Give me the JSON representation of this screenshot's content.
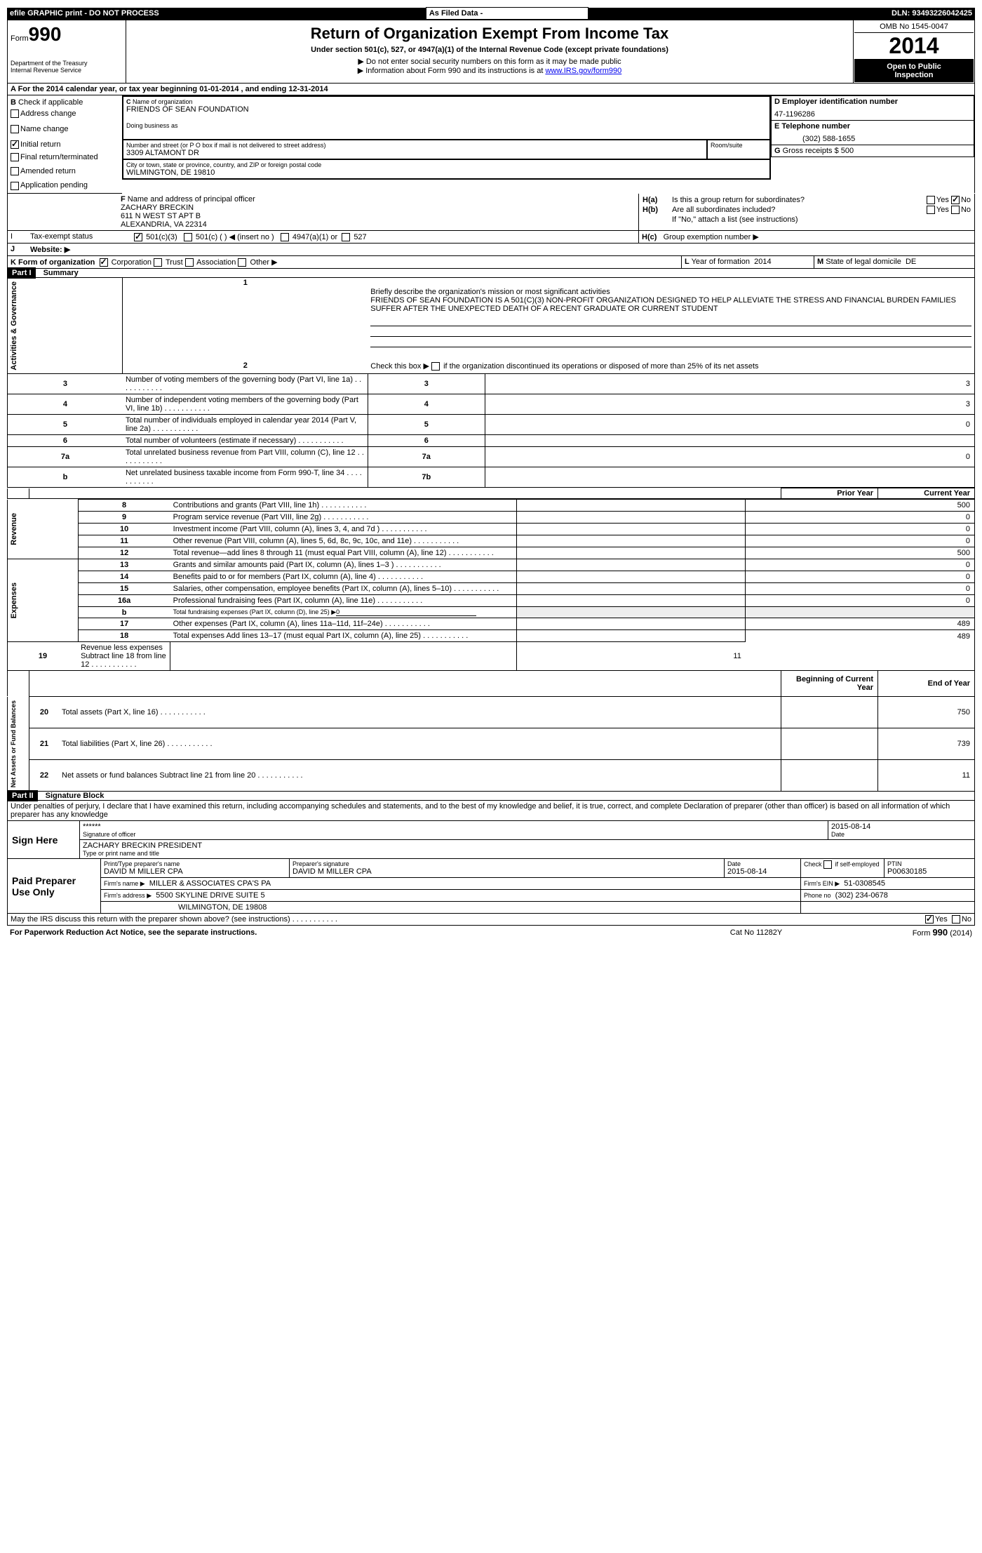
{
  "top_bar": {
    "left": "efile GRAPHIC print - DO NOT PROCESS",
    "mid": "As Filed Data - ",
    "right_label": "DLN:",
    "dln": "93493226042425"
  },
  "header": {
    "form_label": "Form",
    "form_number": "990",
    "dept1": "Department of the Treasury",
    "dept2": "Internal Revenue Service",
    "title": "Return of Organization Exempt From Income Tax",
    "subtitle": "Under section 501(c), 527, or 4947(a)(1) of the Internal Revenue Code (except private foundations)",
    "note1": "▶ Do not enter social security numbers on this form as it may be made public",
    "note2_pre": "▶ Information about Form 990 and its instructions is at ",
    "note2_link": "www.IRS.gov/form990",
    "omb": "OMB No  1545-0047",
    "year": "2014",
    "inspection1": "Open to Public",
    "inspection2": "Inspection"
  },
  "section_a": {
    "intro": "A  For the 2014 calendar year, or tax year beginning 01-01-2014    , and ending 12-31-2014",
    "b_label": "B",
    "b_text": "Check if applicable",
    "cb_address": "Address change",
    "cb_name": "Name change",
    "cb_initial": "Initial return",
    "cb_final": "Final return/terminated",
    "cb_amended": "Amended return",
    "cb_app": "Application pending",
    "c_label": "C",
    "c_name_label": "Name of organization",
    "c_name": "FRIENDS OF SEAN FOUNDATION",
    "dba_label": "Doing business as",
    "addr_label": "Number and street (or P O  box if mail is not delivered to street address)",
    "room_label": "Room/suite",
    "addr": "3309 ALTAMONT DR",
    "city_label": "City or town, state or province, country, and ZIP or foreign postal code",
    "city": "WILMINGTON, DE  19810",
    "d_label": "D  Employer identification number",
    "ein": "47-1196286",
    "e_label": "E  Telephone number",
    "phone": "(302) 588-1655",
    "g_label": "G",
    "g_text": "Gross receipts $",
    "g_val": "500",
    "f_label": "F",
    "f_text": "Name and address of principal officer",
    "f_name": "ZACHARY BRECKIN",
    "f_addr1": "611 N WEST ST APT B",
    "f_addr2": "ALEXANDRIA, VA  22314",
    "ha_label": "H(a)",
    "ha_text": "Is this a group return for subordinates?",
    "hb_label": "H(b)",
    "hb_text": "Are all subordinates included?",
    "h_note": "If \"No,\" attach a list  (see instructions)",
    "hc_label": "H(c)",
    "hc_text": "Group exemption number ▶",
    "yes": "Yes",
    "no": "No"
  },
  "status": {
    "i_label": "I",
    "i_text": "Tax-exempt status",
    "i_501c3": "501(c)(3)",
    "i_501c": "501(c) (   ) ◀ (insert no )",
    "i_4947": "4947(a)(1) or",
    "i_527": "527",
    "j_label": "J",
    "j_text": "Website: ▶",
    "k_text": "K Form of organization",
    "k_corp": "Corporation",
    "k_trust": "Trust",
    "k_assoc": "Association",
    "k_other": "Other ▶",
    "l_label": "L",
    "l_text": "Year of formation",
    "l_val": "2014",
    "m_label": "M",
    "m_text": "State of legal domicile",
    "m_val": "DE"
  },
  "part1": {
    "header": "Part I",
    "title": "Summary",
    "gov_label": "Activities & Governance",
    "rev_label": "Revenue",
    "exp_label": "Expenses",
    "net_label": "Net Assets or Fund Balances",
    "line1_label": "1",
    "line1_text": "Briefly describe the organization's mission or most significant activities",
    "line1_val": "FRIENDS OF SEAN FOUNDATION IS A 501(C)(3) NON-PROFIT ORGANIZATION DESIGNED TO HELP ALLEVIATE THE STRESS AND FINANCIAL BURDEN FAMILIES SUFFER AFTER THE UNEXPECTED DEATH OF A RECENT GRADUATE OR CURRENT STUDENT",
    "line2_label": "2",
    "line2_text": "Check this box ▶",
    "line2_post": "if the organization discontinued its operations or disposed of more than 25% of its net assets",
    "rows_gov": [
      {
        "n": "3",
        "t": "Number of voting members of the governing body (Part VI, line 1a)",
        "k": "3",
        "v": "3"
      },
      {
        "n": "4",
        "t": "Number of independent voting members of the governing body (Part VI, line 1b)",
        "k": "4",
        "v": "3"
      },
      {
        "n": "5",
        "t": "Total number of individuals employed in calendar year 2014 (Part V, line 2a)",
        "k": "5",
        "v": "0"
      },
      {
        "n": "6",
        "t": "Total number of volunteers (estimate if necessary)",
        "k": "6",
        "v": ""
      },
      {
        "n": "7a",
        "t": "Total unrelated business revenue from Part VIII, column (C), line 12",
        "k": "7a",
        "v": "0"
      },
      {
        "n": "b",
        "t": "Net unrelated business taxable income from Form 990-T, line 34",
        "k": "7b",
        "v": ""
      }
    ],
    "prior_year": "Prior Year",
    "current_year": "Current Year",
    "rows_money": [
      {
        "n": "8",
        "t": "Contributions and grants (Part VIII, line 1h)",
        "p": "",
        "c": "500"
      },
      {
        "n": "9",
        "t": "Program service revenue (Part VIII, line 2g)",
        "p": "",
        "c": "0"
      },
      {
        "n": "10",
        "t": "Investment income (Part VIII, column (A), lines 3, 4, and 7d )",
        "p": "",
        "c": "0"
      },
      {
        "n": "11",
        "t": "Other revenue (Part VIII, column (A), lines 5, 6d, 8c, 9c, 10c, and 11e)",
        "p": "",
        "c": "0"
      },
      {
        "n": "12",
        "t": "Total revenue—add lines 8 through 11 (must equal Part VIII, column (A), line 12)",
        "p": "",
        "c": "500"
      },
      {
        "n": "13",
        "t": "Grants and similar amounts paid (Part IX, column (A), lines 1–3 )",
        "p": "",
        "c": "0"
      },
      {
        "n": "14",
        "t": "Benefits paid to or for members (Part IX, column (A), line 4)",
        "p": "",
        "c": "0"
      },
      {
        "n": "15",
        "t": "Salaries, other compensation, employee benefits (Part IX, column (A), lines 5–10)",
        "p": "",
        "c": "0"
      },
      {
        "n": "16a",
        "t": "Professional fundraising fees (Part IX, column (A), line 11e)",
        "p": "",
        "c": "0"
      }
    ],
    "line16b_n": "b",
    "line16b_t": "Total fundraising expenses (Part IX, column (D), line 25) ▶",
    "line16b_v": "0",
    "rows_money2": [
      {
        "n": "17",
        "t": "Other expenses (Part IX, column (A), lines 11a–11d, 11f–24e)",
        "p": "",
        "c": "489"
      },
      {
        "n": "18",
        "t": "Total expenses  Add lines 13–17 (must equal Part IX, column (A), line 25)",
        "p": "",
        "c": "489"
      },
      {
        "n": "19",
        "t": "Revenue less expenses  Subtract line 18 from line 12",
        "p": "",
        "c": "11"
      }
    ],
    "begin_year": "Beginning of Current Year",
    "end_year": "End of Year",
    "rows_net": [
      {
        "n": "20",
        "t": "Total assets (Part X, line 16)",
        "p": "",
        "c": "750"
      },
      {
        "n": "21",
        "t": "Total liabilities (Part X, line 26)",
        "p": "",
        "c": "739"
      },
      {
        "n": "22",
        "t": "Net assets or fund balances  Subtract line 21 from line 20",
        "p": "",
        "c": "11"
      }
    ]
  },
  "part2": {
    "header": "Part II",
    "title": "Signature Block",
    "declaration": "Under penalties of perjury, I declare that I have examined this return, including accompanying schedules and statements, and to the best of my knowledge and belief, it is true, correct, and complete  Declaration of preparer (other than officer) is based on all information of which preparer has any knowledge",
    "sign_here": "Sign Here",
    "sig_stars": "******",
    "sig_label": "Signature of officer",
    "date_label": "Date",
    "sig_date": "2015-08-14",
    "officer_name": "ZACHARY BRECKIN  PRESIDENT",
    "officer_label": "Type or print name and title",
    "paid": "Paid Preparer Use Only",
    "prep_name_label": "Print/Type preparer's name",
    "prep_name": "DAVID M MILLER CPA",
    "prep_sig_label": "Preparer's signature",
    "prep_sig": "DAVID M MILLER CPA",
    "prep_date_label": "Date",
    "prep_date": "2015-08-14",
    "check_if_label": "Check",
    "check_if_text": "if self-employed",
    "ptin_label": "PTIN",
    "ptin": "P00630185",
    "firm_name_label": "Firm's name      ▶",
    "firm_name": "MILLER & ASSOCIATES CPA'S PA",
    "firm_ein_label": "Firm's EIN ▶",
    "firm_ein": "51-0308545",
    "firm_addr_label": "Firm's address ▶",
    "firm_addr": "5500 SKYLINE DRIVE SUITE 5",
    "firm_city": "WILMINGTON, DE  19808",
    "firm_phone_label": "Phone no",
    "firm_phone": "(302) 234-0678",
    "discuss": "May the IRS discuss this return with the preparer shown above? (see instructions)",
    "yes": "Yes",
    "no": "No"
  },
  "footer": {
    "paperwork": "For Paperwork Reduction Act Notice, see the separate instructions.",
    "cat": "Cat No  11282Y",
    "form": "Form 990 (2014)"
  }
}
